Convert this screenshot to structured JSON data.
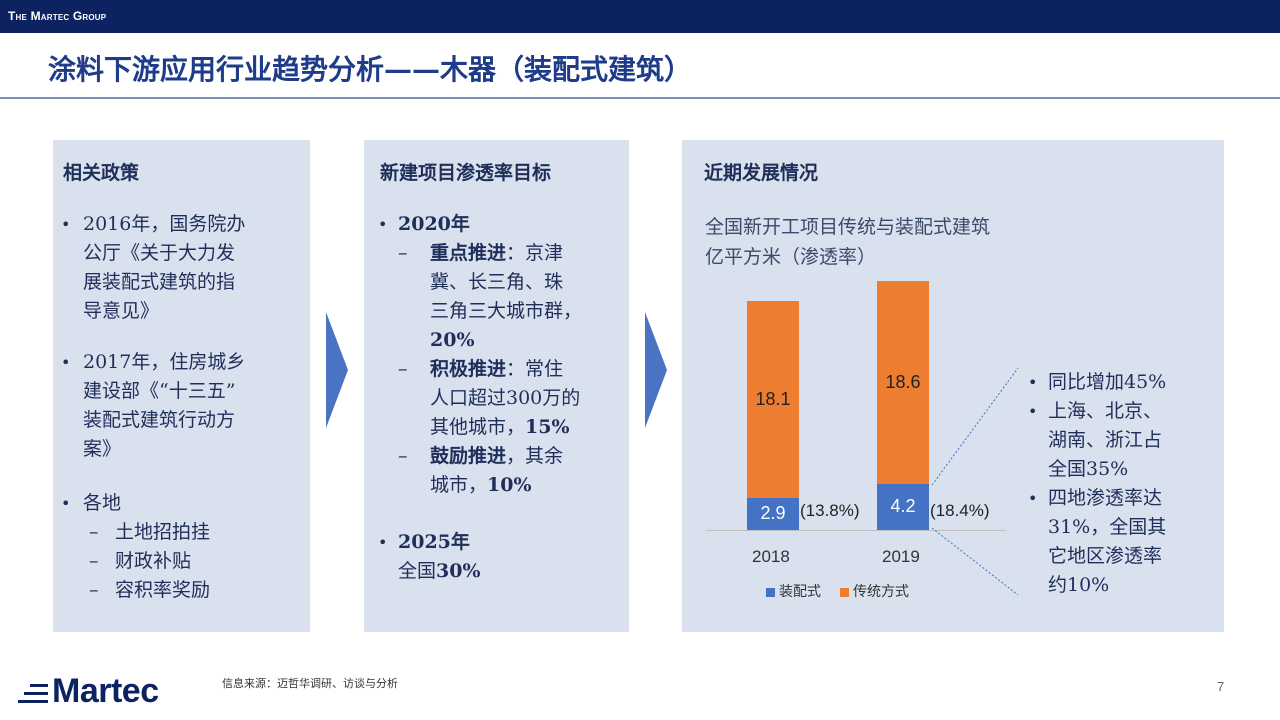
{
  "header": {
    "brand": "The Martec Group"
  },
  "title": "涂料下游应用行业趋势分析——木器（装配式建筑）",
  "policy": {
    "heading": "相关政策",
    "items": [
      {
        "bullet": "•",
        "lines": [
          "2016年，国务院办",
          "公厅《关于大力发",
          "展装配式建筑的指",
          "导意见》"
        ]
      },
      {
        "bullet": "•",
        "lines": [
          "2017年，住房城乡",
          "建设部《“十三五”",
          "装配式建筑行动方",
          "案》"
        ]
      },
      {
        "bullet": "•",
        "lines": [
          "各地"
        ]
      }
    ],
    "sub_items": [
      "土地招拍挂",
      "财政补贴",
      "容积率奖励"
    ],
    "dash": "–"
  },
  "target": {
    "heading": "新建项目渗透率目标",
    "y2020": "2020年",
    "y2025": "2025年",
    "y2025_line1": "全国",
    "y2025_pct": "30%",
    "dash": "–",
    "bullet": "•",
    "sub": [
      {
        "bold": "重点推进",
        "rest_line1": "：京津",
        "lines": [
          "冀、长三角、珠",
          "三角三大城市群，"
        ],
        "pct": "20%"
      },
      {
        "bold": "积极推进",
        "rest_line1": "：常住",
        "lines": [
          "人口超过300万的",
          "其他城市，"
        ],
        "pct": "15%"
      },
      {
        "bold": "鼓励推进",
        "rest_line1": "，其余",
        "lines": [
          "城市，"
        ],
        "pct": "10%"
      }
    ]
  },
  "recent": {
    "heading": "近期发展情况",
    "chart_sub1": "全国新开工项目传统与装配式建筑",
    "chart_sub2": "亿平方米（渗透率）",
    "notes": [
      {
        "bullet": "•",
        "lines": [
          "同比增加45%"
        ]
      },
      {
        "bullet": "•",
        "lines": [
          "上海、北京、",
          "湖南、浙江占",
          "全国35%"
        ]
      },
      {
        "bullet": "•",
        "lines": [
          "四地渗透率达",
          "31%，全国其",
          "它地区渗透率",
          "约10%"
        ]
      }
    ]
  },
  "chart_data": {
    "type": "bar",
    "stacked": true,
    "categories": [
      "2018",
      "2019"
    ],
    "series": [
      {
        "name": "装配式",
        "values": [
          2.9,
          4.2
        ],
        "color": "#4472c4"
      },
      {
        "name": "传统方式",
        "values": [
          18.1,
          18.6
        ],
        "color": "#ed7d31"
      }
    ],
    "value_labels": {
      "prefab": [
        "2.9",
        "4.2"
      ],
      "traditional": [
        "18.1",
        "18.6"
      ]
    },
    "annotations": [
      "(13.8%)",
      "(18.4%)"
    ],
    "legend_position": "bottom"
  },
  "footer": {
    "logo": "Martec",
    "source": "信息来源：迈哲华调研、访谈与分析",
    "page": "7"
  }
}
